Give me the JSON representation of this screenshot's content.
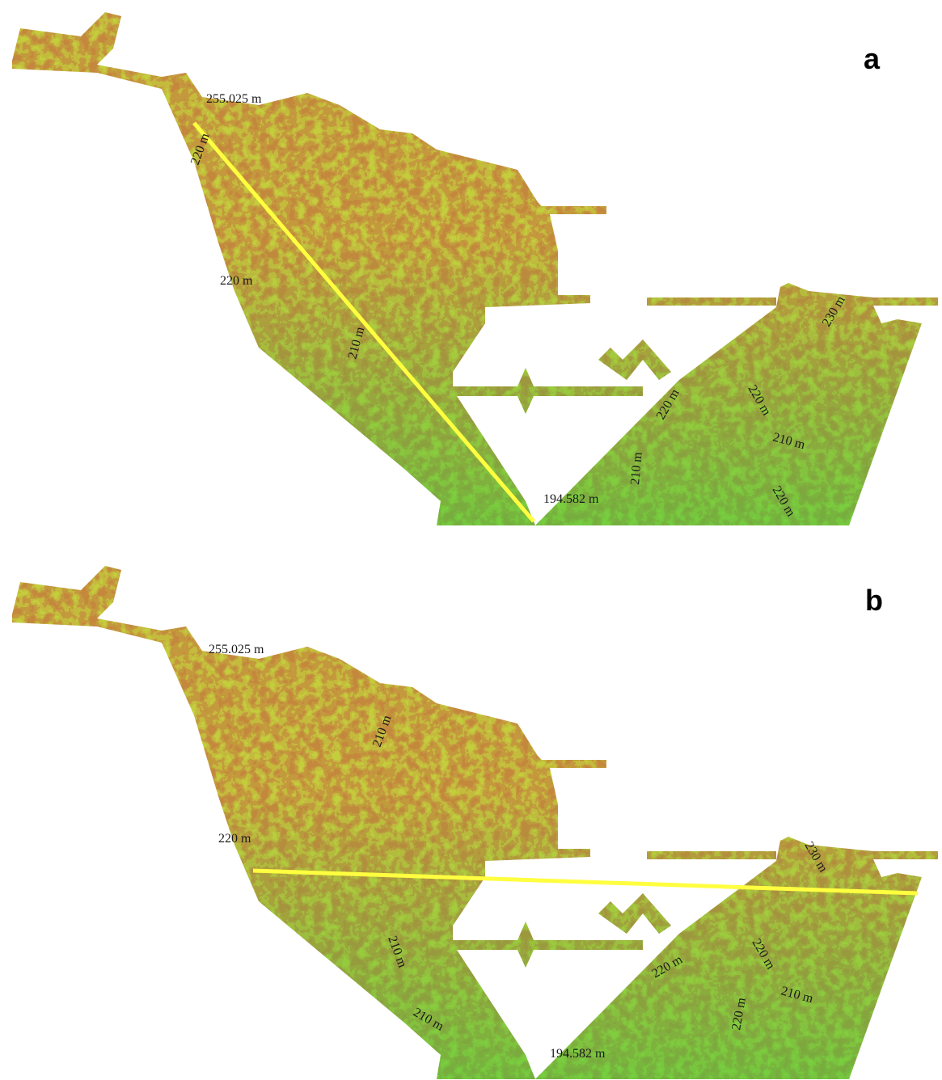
{
  "panels": [
    {
      "label": "a",
      "contour_labels": [
        "255.025 m",
        "220 m",
        "220 m",
        "210 m",
        "194.582 m",
        "210 m",
        "220 m",
        "220 m",
        "210 m",
        "220 m",
        "230 m"
      ]
    },
    {
      "label": "b",
      "contour_labels": [
        "255.025 m",
        "210 m",
        "220 m",
        "230 m",
        "210 m",
        "210 m",
        "194.582 m",
        "220 m",
        "220 m",
        "210 m",
        "220 m"
      ]
    }
  ]
}
